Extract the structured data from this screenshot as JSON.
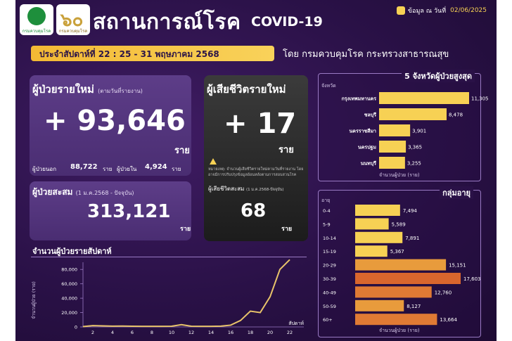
{
  "header": {
    "logo1_text": "กรมควบคุมโรค",
    "logo2_num": "๖๐",
    "logo2_text": "กรมควบคุมโรค",
    "title_th": "สถานการณ์โรค",
    "title_en": "COVID-19",
    "update_label": "ข้อมูล ณ วันที่",
    "update_date": "02/06/2025"
  },
  "week_label": "ประจำสัปดาห์ที่  22 : 25 - 31 พฤษภาคม 2568",
  "department": "โดย กรมควบคุมโรค กระทรวงสาธารณสุข",
  "new_cases": {
    "title": "ผู้ป่วยรายใหม่",
    "title_note": "(ตามวันที่รายงาน)",
    "value": "+ 93,646",
    "unit": "ราย",
    "out_label": "ผู้ป่วยนอก",
    "out_value": "88,722",
    "in_label": "ผู้ป่วยใน",
    "in_value": "4,924",
    "sub_unit": "ราย"
  },
  "cumulative": {
    "title": "ผู้ป่วยสะสม",
    "title_note": "(1 ม.ค.2568 - ปัจจุบัน)",
    "value": "313,121",
    "unit": "ราย"
  },
  "deaths": {
    "title": "ผู้เสียชีวิตรายใหม่",
    "value": "+ 17",
    "unit": "ราย",
    "note": "หมายเหตุ: จำนวนผู้เสียชีวิตรายใหม่ตามวันที่รายงาน โดยอาจมีการปรับปรุงข้อมูลย้อนหลังตามการสอบสวนโรค",
    "cum_title": "ผู้เสียชีวิตสะสม",
    "cum_note": "(1 ม.ค.2568-ปัจจุบัน)",
    "cum_value": "68",
    "cum_unit": "ราย"
  },
  "colors": {
    "background": "#2a1147",
    "panel": "#4a2d72",
    "accent": "#f7d154",
    "line": "#e9c46a"
  },
  "chart_data": [
    {
      "type": "bar",
      "title": "5 จังหวัดผู้ป่วยสูงสุด",
      "xlabel": "จำนวนผู้ป่วย (ราย)",
      "ylabel": "จังหวัด",
      "categories": [
        "กรุงเทพมหานคร",
        "ชลบุรี",
        "นครราชสีมา",
        "นครปฐม",
        "นนทบุรี"
      ],
      "values": [
        11305,
        8478,
        3901,
        3365,
        3255
      ],
      "labels": [
        "11,305",
        "8,478",
        "3,901",
        "3,365",
        "3,255"
      ],
      "orientation": "horizontal",
      "color": "#f7d154"
    },
    {
      "type": "bar",
      "title": "กลุ่มอายุ",
      "xlabel": "จำนวนผู้ป่วย (ราย)",
      "ylabel": "อายุ",
      "categories": [
        "0-4",
        "5-9",
        "10-14",
        "15-19",
        "20-29",
        "30-39",
        "40-49",
        "50-59",
        "60+"
      ],
      "values": [
        7494,
        5589,
        7891,
        5367,
        15151,
        17603,
        12760,
        8127,
        13664
      ],
      "labels": [
        "7,494",
        "5,589",
        "7,891",
        "5,367",
        "15,151",
        "17,603",
        "12,760",
        "8,127",
        "13,664"
      ],
      "colors": [
        "#f7d154",
        "#f7d154",
        "#f7d154",
        "#f7d154",
        "#e89b3c",
        "#d9662d",
        "#e07a34",
        "#e89b3c",
        "#e07a34"
      ],
      "orientation": "horizontal"
    },
    {
      "type": "line",
      "title": "จำนวนผู้ป่วยรายสัปดาห์",
      "xlabel": "สัปดาห์",
      "ylabel": "จำนวนผู้ป่วย (ราย)",
      "x": [
        1,
        2,
        3,
        4,
        5,
        6,
        7,
        8,
        9,
        10,
        11,
        12,
        13,
        14,
        15,
        16,
        17,
        18,
        19,
        20,
        21,
        22
      ],
      "xticks": [
        2,
        4,
        6,
        8,
        10,
        12,
        14,
        16,
        18,
        20,
        22
      ],
      "ylim": [
        0,
        90000
      ],
      "yticks": [
        "0",
        "20,000",
        "40,000",
        "60,000",
        "80,000"
      ],
      "ytick_values": [
        0,
        20000,
        40000,
        60000,
        80000
      ],
      "series": [
        {
          "values": [
            500,
            1800,
            1500,
            1100,
            1200,
            1000,
            900,
            800,
            900,
            1000,
            3200,
            1000,
            800,
            900,
            1100,
            2500,
            9000,
            22000,
            20000,
            42000,
            80000,
            93646
          ]
        }
      ],
      "color": "#e9c46a"
    }
  ]
}
